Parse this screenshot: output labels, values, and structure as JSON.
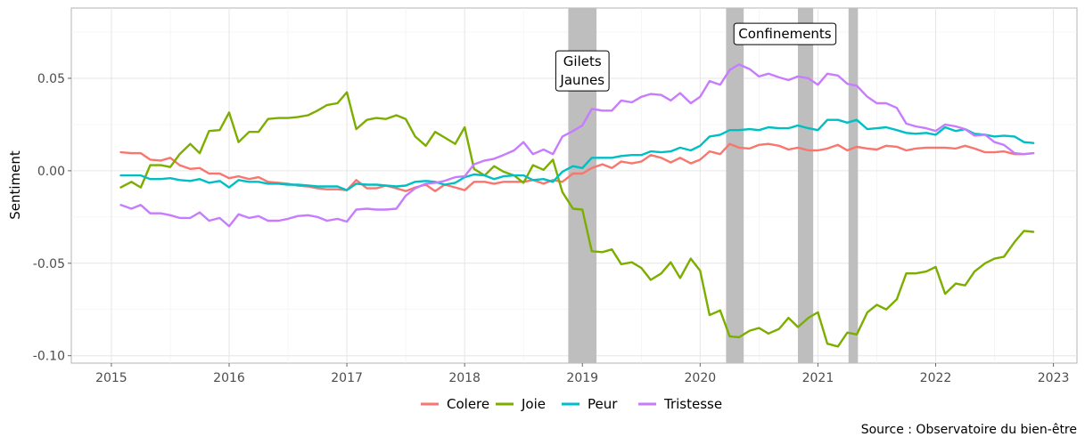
{
  "chart_data": {
    "type": "line",
    "title": "",
    "xlabel": "",
    "ylabel": "Sentiment",
    "caption": "Source : Observatoire du bien-être",
    "xlim": [
      2014.66,
      2023.2
    ],
    "ylim": [
      -0.104,
      0.088
    ],
    "x_ticks": [
      2015,
      2016,
      2017,
      2018,
      2019,
      2020,
      2021,
      2022,
      2023
    ],
    "x_tick_labels": [
      "2015",
      "2016",
      "2017",
      "2018",
      "2019",
      "2020",
      "2021",
      "2022",
      "2023"
    ],
    "y_ticks": [
      -0.1,
      -0.05,
      0.0,
      0.05
    ],
    "y_tick_labels": [
      "-0.10",
      "-0.05",
      "0.00",
      "0.05"
    ],
    "grid": true,
    "legend_position": "bottom",
    "shaded_periods": [
      {
        "start": 2018.88,
        "end": 2019.12
      },
      {
        "start": 2020.22,
        "end": 2020.37
      },
      {
        "start": 2020.83,
        "end": 2020.96
      },
      {
        "start": 2021.26,
        "end": 2021.34
      }
    ],
    "annotations": [
      {
        "lines": [
          "Gilets",
          "Jaunes"
        ],
        "x": 2019.0,
        "y": 0.054
      },
      {
        "lines": [
          "Confinements"
        ],
        "x": 2020.72,
        "y": 0.074
      }
    ],
    "x": [
      2015.08,
      2015.17,
      2015.25,
      2015.33,
      2015.42,
      2015.5,
      2015.58,
      2015.67,
      2015.75,
      2015.83,
      2015.92,
      2016.0,
      2016.08,
      2016.17,
      2016.25,
      2016.33,
      2016.42,
      2016.5,
      2016.58,
      2016.67,
      2016.75,
      2016.83,
      2016.92,
      2017.0,
      2017.08,
      2017.17,
      2017.25,
      2017.33,
      2017.42,
      2017.5,
      2017.58,
      2017.67,
      2017.75,
      2017.83,
      2017.92,
      2018.0,
      2018.08,
      2018.17,
      2018.25,
      2018.33,
      2018.42,
      2018.5,
      2018.58,
      2018.67,
      2018.75,
      2018.83,
      2018.92,
      2019.0,
      2019.08,
      2019.17,
      2019.25,
      2019.33,
      2019.42,
      2019.5,
      2019.58,
      2019.67,
      2019.75,
      2019.83,
      2019.92,
      2020.0,
      2020.08,
      2020.17,
      2020.25,
      2020.33,
      2020.42,
      2020.5,
      2020.58,
      2020.67,
      2020.75,
      2020.83,
      2020.92,
      2021.0,
      2021.08,
      2021.17,
      2021.25,
      2021.33,
      2021.42,
      2021.5,
      2021.58,
      2021.67,
      2021.75,
      2021.83,
      2021.92,
      2022.0,
      2022.08,
      2022.17,
      2022.25,
      2022.33,
      2022.42,
      2022.5,
      2022.58,
      2022.67,
      2022.75,
      2022.83
    ],
    "series": [
      {
        "name": "Colere",
        "color": "#F8766D",
        "values": [
          0.01,
          0.0095,
          0.0095,
          0.006,
          0.0055,
          0.007,
          0.003,
          0.001,
          0.0015,
          -0.0015,
          -0.0015,
          -0.004,
          -0.003,
          -0.0045,
          -0.0035,
          -0.006,
          -0.0065,
          -0.007,
          -0.008,
          -0.0085,
          -0.0095,
          -0.01,
          -0.01,
          -0.0105,
          -0.005,
          -0.0095,
          -0.0095,
          -0.008,
          -0.0095,
          -0.011,
          -0.009,
          -0.0075,
          -0.011,
          -0.0075,
          -0.009,
          -0.0105,
          -0.006,
          -0.006,
          -0.007,
          -0.006,
          -0.006,
          -0.006,
          -0.005,
          -0.007,
          -0.005,
          -0.006,
          -0.0015,
          -0.0015,
          0.0015,
          0.0035,
          0.0015,
          0.005,
          0.004,
          0.005,
          0.0085,
          0.007,
          0.0045,
          0.007,
          0.004,
          0.006,
          0.0105,
          0.009,
          0.0145,
          0.0125,
          0.012,
          0.014,
          0.0145,
          0.0135,
          0.0115,
          0.0125,
          0.011,
          0.011,
          0.012,
          0.014,
          0.011,
          0.013,
          0.012,
          0.0115,
          0.0135,
          0.013,
          0.011,
          0.012,
          0.0125,
          0.0125,
          0.0125,
          0.012,
          0.0135,
          0.012,
          0.01,
          0.01,
          0.0105,
          0.009,
          0.009,
          0.0095
        ]
      },
      {
        "name": "Joie",
        "color": "#7CAE00",
        "values": [
          -0.009,
          -0.006,
          -0.009,
          0.003,
          0.003,
          0.002,
          0.009,
          0.0145,
          0.0095,
          0.0215,
          0.022,
          0.0315,
          0.0155,
          0.021,
          0.021,
          0.028,
          0.0285,
          0.0285,
          0.029,
          0.03,
          0.0325,
          0.0355,
          0.0365,
          0.0425,
          0.0225,
          0.0275,
          0.0285,
          0.028,
          0.03,
          0.028,
          0.0185,
          0.0135,
          0.021,
          0.018,
          0.0145,
          0.0235,
          0.001,
          -0.0025,
          0.0025,
          -0.0005,
          -0.0025,
          -0.0065,
          0.003,
          0.0005,
          0.006,
          -0.0115,
          -0.0205,
          -0.021,
          -0.0435,
          -0.044,
          -0.0425,
          -0.0505,
          -0.0495,
          -0.0525,
          -0.059,
          -0.0555,
          -0.0495,
          -0.058,
          -0.0475,
          -0.054,
          -0.078,
          -0.0755,
          -0.0895,
          -0.09,
          -0.0865,
          -0.085,
          -0.088,
          -0.0855,
          -0.0795,
          -0.0845,
          -0.0795,
          -0.0765,
          -0.0935,
          -0.095,
          -0.0875,
          -0.0885,
          -0.0765,
          -0.0725,
          -0.075,
          -0.0695,
          -0.0555,
          -0.0555,
          -0.0545,
          -0.052,
          -0.0665,
          -0.061,
          -0.062,
          -0.0545,
          -0.05,
          -0.0475,
          -0.0465,
          -0.0385,
          -0.0325,
          -0.033
        ]
      },
      {
        "name": "Peur",
        "color": "#00BFC4",
        "values": [
          -0.0025,
          -0.0025,
          -0.0025,
          -0.0045,
          -0.0045,
          -0.004,
          -0.005,
          -0.0055,
          -0.0045,
          -0.0065,
          -0.0055,
          -0.009,
          -0.005,
          -0.006,
          -0.006,
          -0.007,
          -0.007,
          -0.0075,
          -0.0075,
          -0.008,
          -0.0085,
          -0.0085,
          -0.0085,
          -0.0105,
          -0.007,
          -0.0075,
          -0.0075,
          -0.008,
          -0.0085,
          -0.008,
          -0.006,
          -0.0055,
          -0.006,
          -0.0075,
          -0.0065,
          -0.0035,
          -0.002,
          -0.0025,
          -0.0045,
          -0.003,
          -0.0025,
          -0.0025,
          -0.005,
          -0.0045,
          -0.006,
          -0.0005,
          0.0025,
          0.0015,
          0.007,
          0.007,
          0.007,
          0.008,
          0.0085,
          0.0085,
          0.0105,
          0.01,
          0.0105,
          0.0125,
          0.011,
          0.0135,
          0.0185,
          0.0195,
          0.022,
          0.022,
          0.0225,
          0.022,
          0.0235,
          0.023,
          0.023,
          0.0245,
          0.023,
          0.022,
          0.0275,
          0.0275,
          0.026,
          0.0275,
          0.0225,
          0.023,
          0.0235,
          0.022,
          0.0205,
          0.02,
          0.0205,
          0.0195,
          0.0235,
          0.0215,
          0.0225,
          0.02,
          0.0195,
          0.0185,
          0.019,
          0.0185,
          0.0155,
          0.015
        ]
      },
      {
        "name": "Tristesse",
        "color": "#C77CFF",
        "values": [
          -0.0185,
          -0.0205,
          -0.0185,
          -0.023,
          -0.023,
          -0.024,
          -0.0255,
          -0.0255,
          -0.0225,
          -0.027,
          -0.0255,
          -0.03,
          -0.0235,
          -0.0255,
          -0.0245,
          -0.027,
          -0.027,
          -0.026,
          -0.0245,
          -0.024,
          -0.025,
          -0.027,
          -0.026,
          -0.0275,
          -0.021,
          -0.0205,
          -0.021,
          -0.021,
          -0.0205,
          -0.0135,
          -0.0095,
          -0.007,
          -0.0065,
          -0.0055,
          -0.0035,
          -0.003,
          0.0035,
          0.0055,
          0.0065,
          0.0085,
          0.011,
          0.0155,
          0.009,
          0.0115,
          0.009,
          0.0185,
          0.0215,
          0.0245,
          0.0335,
          0.0325,
          0.0325,
          0.038,
          0.037,
          0.04,
          0.0415,
          0.041,
          0.038,
          0.042,
          0.0365,
          0.04,
          0.0485,
          0.0465,
          0.0545,
          0.0575,
          0.055,
          0.051,
          0.0525,
          0.0505,
          0.049,
          0.051,
          0.05,
          0.0465,
          0.0525,
          0.0515,
          0.047,
          0.046,
          0.04,
          0.0365,
          0.0365,
          0.034,
          0.0255,
          0.024,
          0.023,
          0.0215,
          0.025,
          0.024,
          0.0225,
          0.019,
          0.0195,
          0.0155,
          0.014,
          0.0095,
          0.009,
          0.0095
        ]
      }
    ]
  }
}
